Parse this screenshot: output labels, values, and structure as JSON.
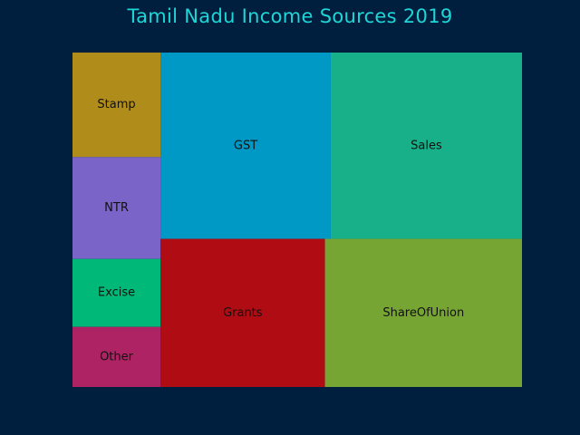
{
  "title": "Tamil Nadu Income Sources 2019",
  "colors": {
    "background": "#001f3f",
    "title": "#1fd6d6",
    "label": "#111111"
  },
  "chart_data": {
    "type": "treemap",
    "title": "Tamil Nadu Income Sources 2019",
    "items": [
      {
        "label": "Stamp",
        "value": 40,
        "color": "#b08d1a"
      },
      {
        "label": "NTR",
        "value": 39,
        "color": "#7b64c8"
      },
      {
        "label": "Excise",
        "value": 26,
        "color": "#00b877"
      },
      {
        "label": "Other",
        "value": 23,
        "color": "#ae2363"
      },
      {
        "label": "GST",
        "value": 138,
        "color": "#0099c6"
      },
      {
        "label": "Grants",
        "value": 106,
        "color": "#b00c14"
      },
      {
        "label": "Sales",
        "value": 155,
        "color": "#18b088"
      },
      {
        "label": "ShareOfUnion",
        "value": 127,
        "color": "#77a534"
      }
    ]
  }
}
